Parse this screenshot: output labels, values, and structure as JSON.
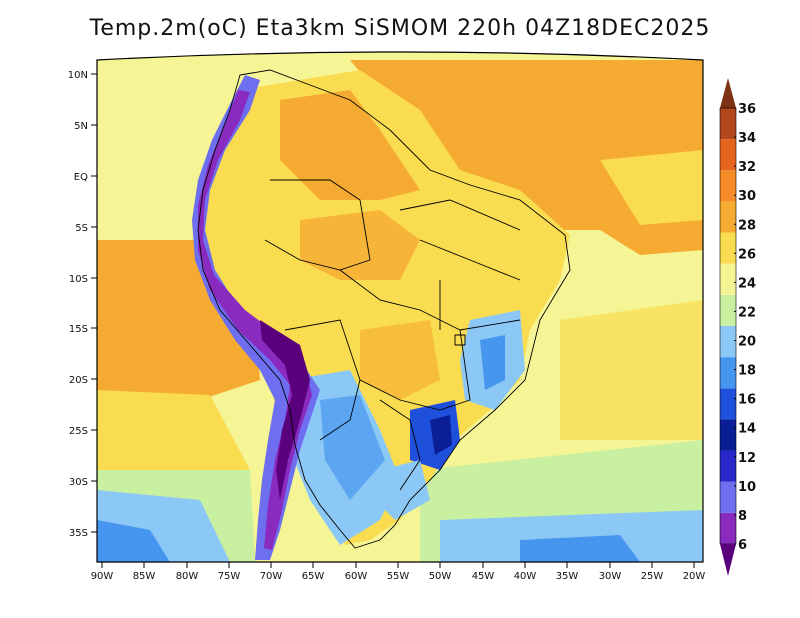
{
  "title": "Temp.2m(oC) Eta3km SiSMOM 220h 04Z18DEC2025",
  "lat_labels": [
    "10N",
    "5N",
    "EQ",
    "5S",
    "10S",
    "15S",
    "20S",
    "25S",
    "30S",
    "35S"
  ],
  "lon_labels": [
    "90W",
    "85W",
    "80W",
    "75W",
    "70W",
    "65W",
    "60W",
    "55W",
    "50W",
    "45W",
    "40W",
    "35W",
    "30W",
    "25W",
    "20W"
  ],
  "colorbar": {
    "labels": [
      "6",
      "8",
      "10",
      "12",
      "14",
      "16",
      "18",
      "20",
      "22",
      "24",
      "26",
      "28",
      "30",
      "32",
      "34",
      "36"
    ],
    "colors": [
      "#5a007d",
      "#8a2bbf",
      "#6e6ef0",
      "#2828c8",
      "#0a1e96",
      "#1e50dc",
      "#4696f0",
      "#8cc8f5",
      "#c8f0a0",
      "#f5f596",
      "#fadc50",
      "#f5aa32",
      "#f58c28",
      "#e6641e",
      "#b4461e",
      "#7d3214"
    ]
  },
  "chart_data": {
    "type": "heatmap",
    "title": "Temp.2m(oC) Eta3km SiSMOM 220h 04Z18DEC2025",
    "variable": "Temp.2m(oC)",
    "xlabel": "",
    "ylabel": "",
    "x_range": [
      "90W",
      "20W"
    ],
    "y_range": [
      "38S",
      "12N"
    ],
    "levels": [
      6,
      8,
      10,
      12,
      14,
      16,
      18,
      20,
      22,
      24,
      26,
      28,
      30,
      32,
      34,
      36
    ]
  }
}
